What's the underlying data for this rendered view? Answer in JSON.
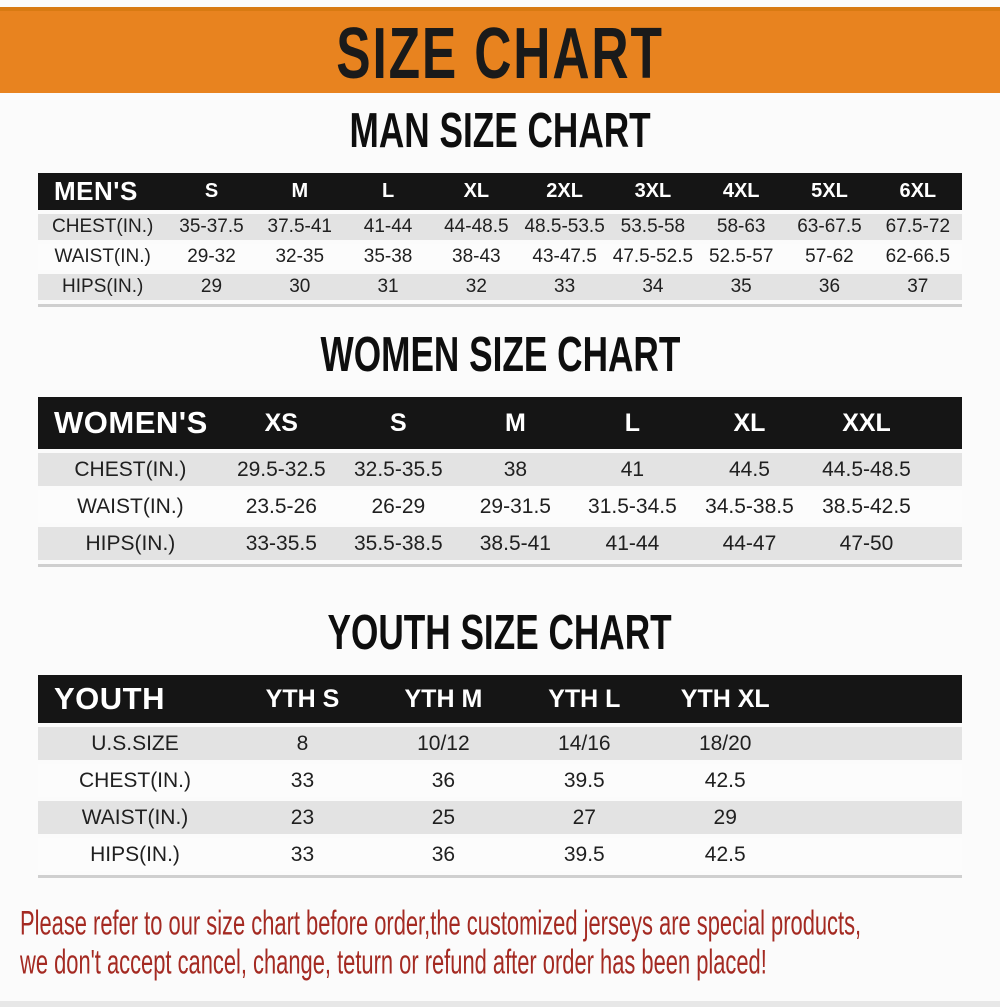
{
  "banner": {
    "title": "SIZE CHART"
  },
  "colors": {
    "banner_bg": "#E8831F",
    "banner_text": "#1A1A1A",
    "header_bar_bg": "#151515",
    "header_bar_text": "#FFFFFF",
    "row_stripe": "#E3E3E3",
    "row_white": "#FCFCFC",
    "cell_text": "#202020",
    "note_text": "#A42A22"
  },
  "sections": [
    {
      "id": "men",
      "title": "MAN SIZE CHART",
      "corner_label": "MEN'S",
      "columns": [
        "S",
        "M",
        "L",
        "XL",
        "2XL",
        "3XL",
        "4XL",
        "5XL",
        "6XL"
      ],
      "rows": [
        {
          "label": "CHEST(IN.)",
          "values": [
            "35-37.5",
            "37.5-41",
            "41-44",
            "44-48.5",
            "48.5-53.5",
            "53.5-58",
            "58-63",
            "63-67.5",
            "67.5-72"
          ]
        },
        {
          "label": "WAIST(IN.)",
          "values": [
            "29-32",
            "32-35",
            "35-38",
            "38-43",
            "43-47.5",
            "47.5-52.5",
            "52.5-57",
            "57-62",
            "62-66.5"
          ]
        },
        {
          "label": "HIPS(IN.)",
          "values": [
            "29",
            "30",
            "31",
            "32",
            "33",
            "34",
            "35",
            "36",
            "37"
          ]
        }
      ]
    },
    {
      "id": "women",
      "title": "WOMEN SIZE CHART",
      "corner_label": "WOMEN'S",
      "columns": [
        "XS",
        "S",
        "M",
        "L",
        "XL",
        "XXL"
      ],
      "rows": [
        {
          "label": "CHEST(IN.)",
          "values": [
            "29.5-32.5",
            "32.5-35.5",
            "38",
            "41",
            "44.5",
            "44.5-48.5"
          ]
        },
        {
          "label": "WAIST(IN.)",
          "values": [
            "23.5-26",
            "26-29",
            "29-31.5",
            "31.5-34.5",
            "34.5-38.5",
            "38.5-42.5"
          ]
        },
        {
          "label": "HIPS(IN.)",
          "values": [
            "33-35.5",
            "35.5-38.5",
            "38.5-41",
            "41-44",
            "44-47",
            "47-50"
          ]
        }
      ]
    },
    {
      "id": "youth",
      "title": "YOUTH SIZE CHART",
      "corner_label": "YOUTH",
      "columns": [
        "YTH S",
        "YTH M",
        "YTH L",
        "YTH XL"
      ],
      "rows": [
        {
          "label": "U.S.SIZE",
          "values": [
            "8",
            "10/12",
            "14/16",
            "18/20"
          ]
        },
        {
          "label": "CHEST(IN.)",
          "values": [
            "33",
            "36",
            "39.5",
            "42.5"
          ]
        },
        {
          "label": "WAIST(IN.)",
          "values": [
            "23",
            "25",
            "27",
            "29"
          ]
        },
        {
          "label": "HIPS(IN.)",
          "values": [
            "33",
            "36",
            "39.5",
            "42.5"
          ]
        }
      ]
    }
  ],
  "footer": {
    "line1": "Please refer to our size chart before order,the customized jerseys are special products,",
    "line2": "we don't accept cancel, change, teturn or refund after order has been placed!"
  }
}
